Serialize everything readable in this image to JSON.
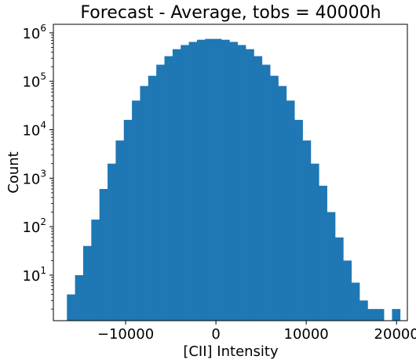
{
  "chart_data": {
    "type": "bar",
    "title": "Forecast - Average, tobs = 40000h",
    "xlabel": "[CII] Intensity",
    "ylabel": "Count",
    "x_ticks": [
      {
        "value": -10000,
        "label": "−10000"
      },
      {
        "value": 0,
        "label": "0"
      },
      {
        "value": 10000,
        "label": "10000"
      },
      {
        "value": 20000,
        "label": "20000"
      }
    ],
    "y_scale": "log",
    "y_ticks": [
      {
        "exp": 1,
        "base": "10",
        "sup": "1"
      },
      {
        "exp": 2,
        "base": "10",
        "sup": "2"
      },
      {
        "exp": 3,
        "base": "10",
        "sup": "3"
      },
      {
        "exp": 4,
        "base": "10",
        "sup": "4"
      },
      {
        "exp": 5,
        "base": "10",
        "sup": "5"
      },
      {
        "exp": 6,
        "base": "10",
        "sup": "6"
      }
    ],
    "xlim": [
      -18000,
      21200
    ],
    "ylim": [
      1.15,
      1500000
    ],
    "grid": false,
    "bar_color": "#1f77b4",
    "bins": [
      {
        "x0": -16500,
        "x1": -15600,
        "count": 4
      },
      {
        "x0": -15600,
        "x1": -14700,
        "count": 10
      },
      {
        "x0": -14700,
        "x1": -13800,
        "count": 40
      },
      {
        "x0": -13800,
        "x1": -12900,
        "count": 140
      },
      {
        "x0": -12900,
        "x1": -12000,
        "count": 600
      },
      {
        "x0": -12000,
        "x1": -11100,
        "count": 2000
      },
      {
        "x0": -11100,
        "x1": -10200,
        "count": 6000
      },
      {
        "x0": -10200,
        "x1": -9300,
        "count": 16000
      },
      {
        "x0": -9300,
        "x1": -8400,
        "count": 40000
      },
      {
        "x0": -8400,
        "x1": -7500,
        "count": 80000
      },
      {
        "x0": -7500,
        "x1": -6600,
        "count": 130000
      },
      {
        "x0": -6600,
        "x1": -5700,
        "count": 220000
      },
      {
        "x0": -5700,
        "x1": -4800,
        "count": 330000
      },
      {
        "x0": -4800,
        "x1": -3900,
        "count": 460000
      },
      {
        "x0": -3900,
        "x1": -3000,
        "count": 560000
      },
      {
        "x0": -3000,
        "x1": -2100,
        "count": 650000
      },
      {
        "x0": -2100,
        "x1": -1200,
        "count": 720000
      },
      {
        "x0": -1200,
        "x1": -300,
        "count": 750000
      },
      {
        "x0": -300,
        "x1": 600,
        "count": 750000
      },
      {
        "x0": 600,
        "x1": 1500,
        "count": 720000
      },
      {
        "x0": 1500,
        "x1": 2400,
        "count": 650000
      },
      {
        "x0": 2400,
        "x1": 3300,
        "count": 560000
      },
      {
        "x0": 3300,
        "x1": 4200,
        "count": 460000
      },
      {
        "x0": 4200,
        "x1": 5100,
        "count": 330000
      },
      {
        "x0": 5100,
        "x1": 6000,
        "count": 220000
      },
      {
        "x0": 6000,
        "x1": 6900,
        "count": 130000
      },
      {
        "x0": 6900,
        "x1": 7800,
        "count": 80000
      },
      {
        "x0": 7800,
        "x1": 8700,
        "count": 40000
      },
      {
        "x0": 8700,
        "x1": 9600,
        "count": 16000
      },
      {
        "x0": 9600,
        "x1": 10500,
        "count": 6000
      },
      {
        "x0": 10500,
        "x1": 11400,
        "count": 2000
      },
      {
        "x0": 11400,
        "x1": 12300,
        "count": 700
      },
      {
        "x0": 12300,
        "x1": 13200,
        "count": 200
      },
      {
        "x0": 13200,
        "x1": 14100,
        "count": 60
      },
      {
        "x0": 14100,
        "x1": 15000,
        "count": 20
      },
      {
        "x0": 15000,
        "x1": 15900,
        "count": 7
      },
      {
        "x0": 15900,
        "x1": 16800,
        "count": 3
      },
      {
        "x0": 16800,
        "x1": 17700,
        "count": 2
      },
      {
        "x0": 17700,
        "x1": 18600,
        "count": 2
      },
      {
        "x0": 18600,
        "x1": 19500,
        "count": 0
      },
      {
        "x0": 19500,
        "x1": 20400,
        "count": 2
      }
    ]
  }
}
